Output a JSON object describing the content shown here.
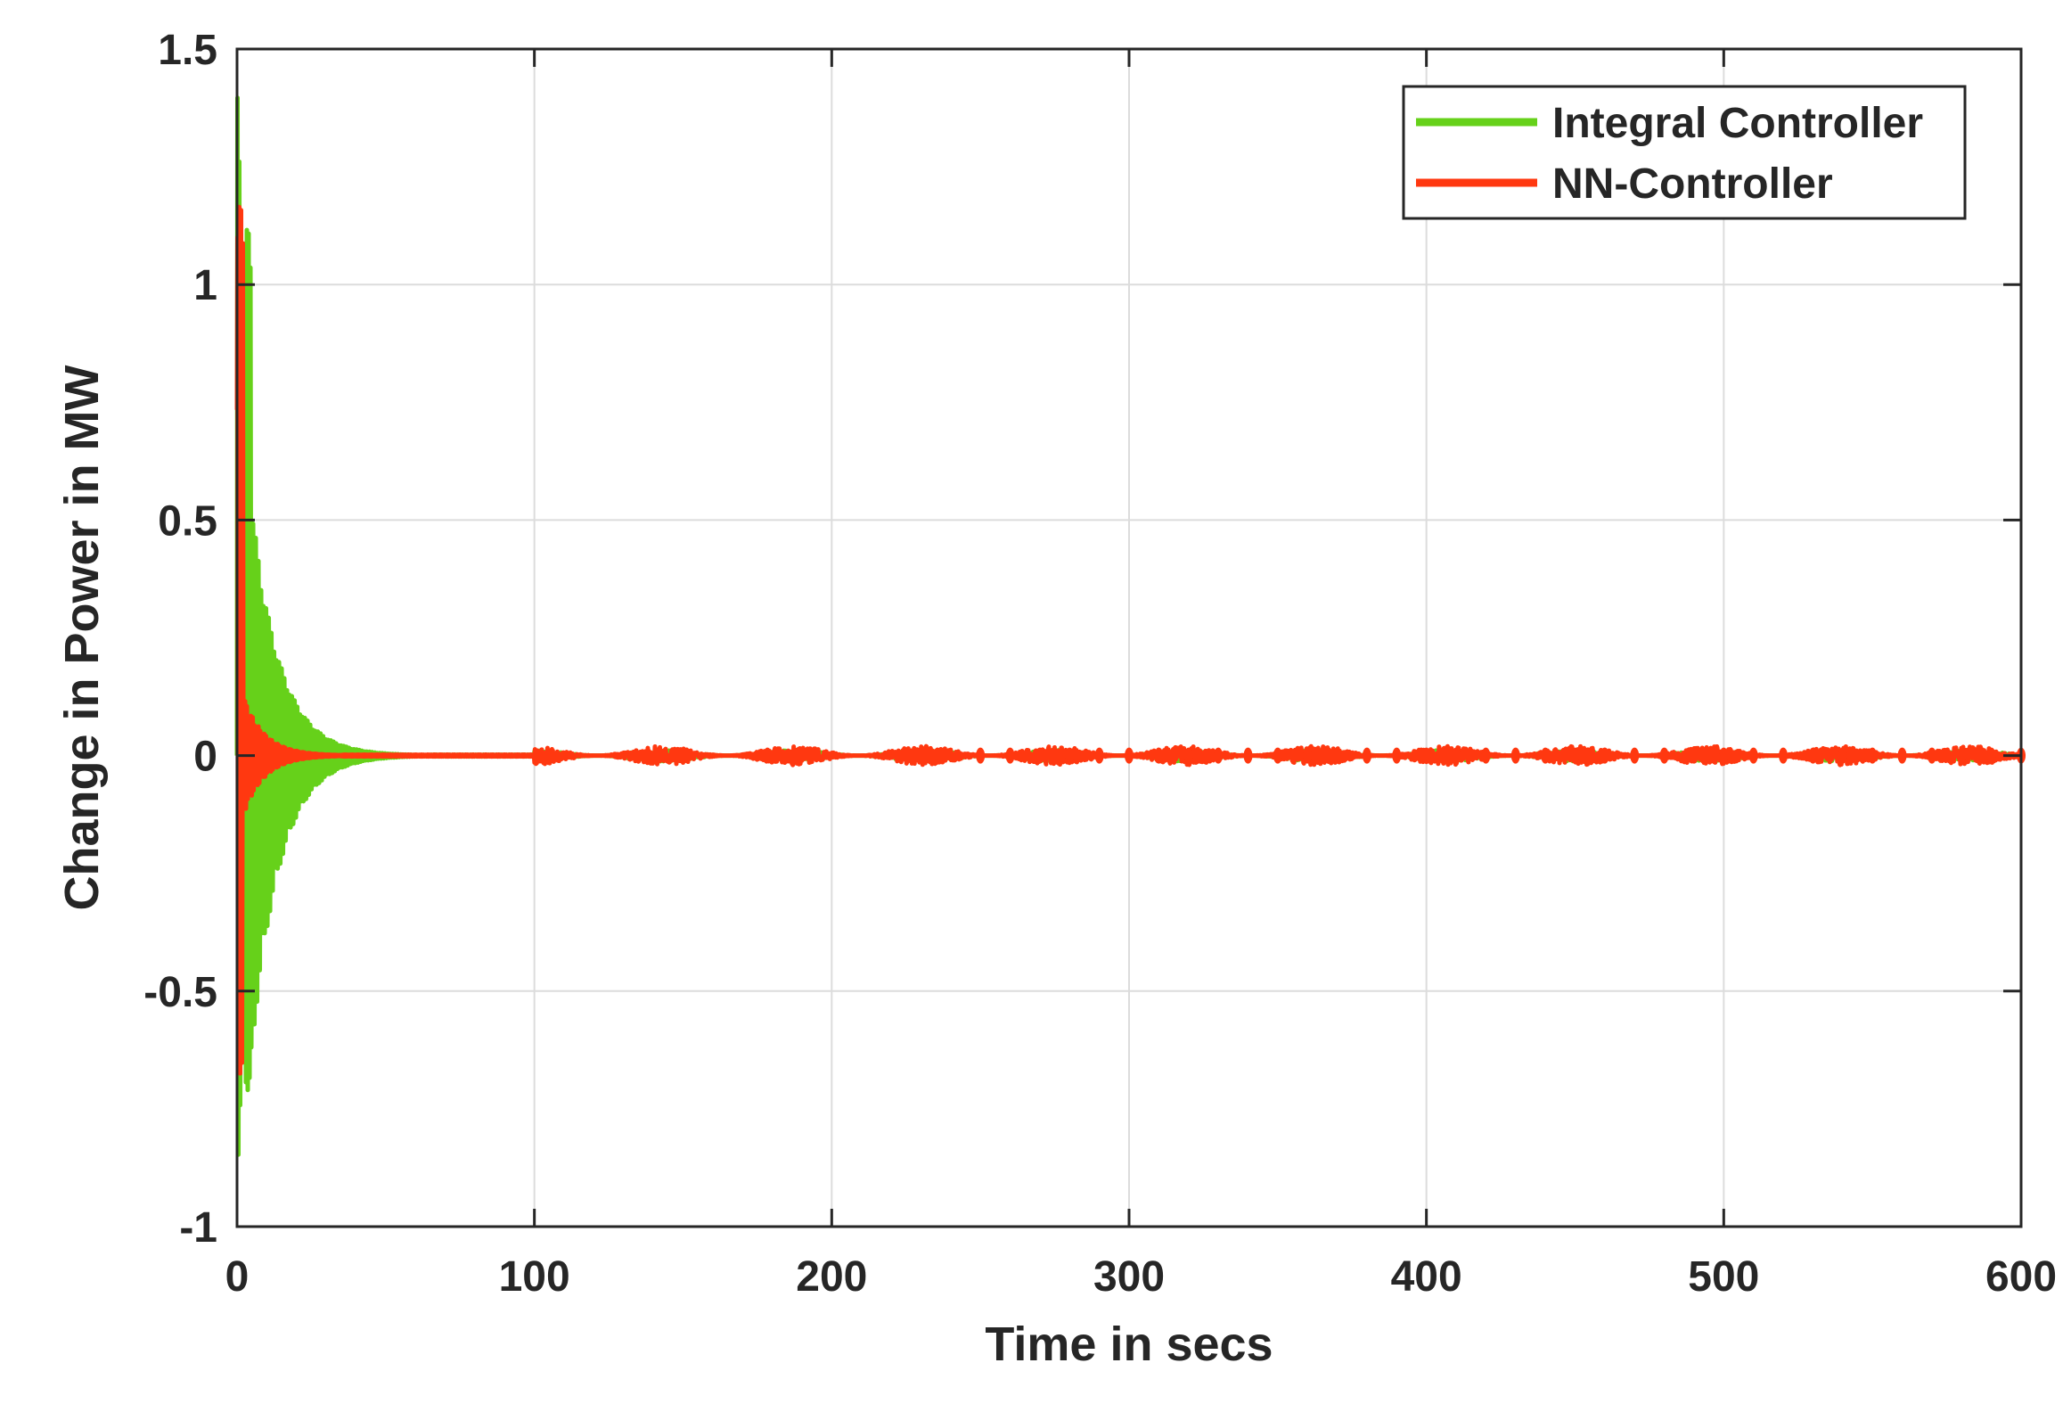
{
  "chart_data": {
    "type": "line",
    "xlabel": "Time in secs",
    "ylabel": "Change in Power in MW",
    "xlim": [
      0,
      600
    ],
    "ylim": [
      -1.0,
      1.5
    ],
    "x_ticks": [
      0,
      100,
      200,
      300,
      400,
      500,
      600
    ],
    "y_ticks": [
      -1.0,
      -0.5,
      0,
      0.5,
      1.0,
      1.5
    ],
    "x_tick_labels": [
      "0",
      "100",
      "200",
      "300",
      "400",
      "500",
      "600"
    ],
    "y_tick_labels": [
      "-1",
      "-0.5",
      "0",
      "0.5",
      "1",
      "1.5"
    ],
    "grid": true,
    "legend_position": "top-right",
    "series": [
      {
        "name": "Integral Controller",
        "color": "#66d11a",
        "envelope": {
          "initial_peak": 1.42,
          "initial_trough": -0.9,
          "oscillation_peak": 0.53,
          "oscillation_trough": -0.63,
          "peak_time": 5,
          "decay_time_constant": 9.5,
          "settle_time": 65,
          "steady_ripple": 0.012
        }
      },
      {
        "name": "NN-Controller",
        "color": "#ff3810",
        "envelope": {
          "initial_peak": 1.3,
          "initial_trough": -0.75,
          "oscillation_peak": 0.13,
          "oscillation_trough": -0.13,
          "peak_time": 2,
          "decay_time_constant": 7,
          "settle_time": 35,
          "steady_ripple": 0.02
        }
      }
    ]
  }
}
